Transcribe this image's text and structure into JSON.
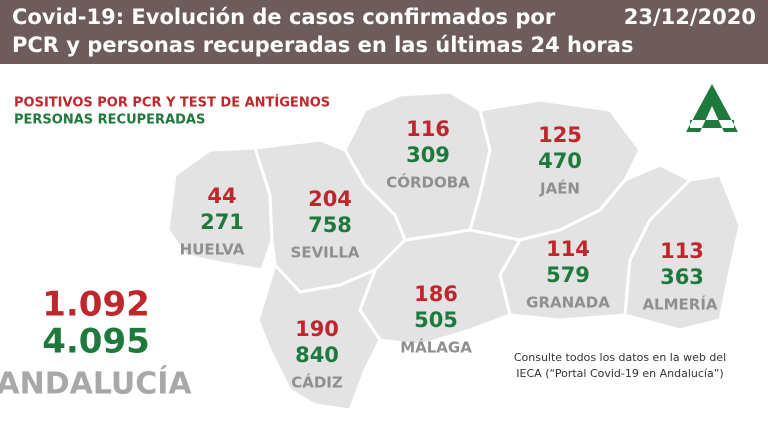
{
  "header": {
    "title_lines": [
      "Covid-19: Evolución de casos confirmados por",
      "PCR y personas recuperadas en las últimas 24 horas"
    ],
    "date": "23/12/2020"
  },
  "legend": {
    "positives": "POSITIVOS POR PCR Y TEST DE ANTÍGENOS",
    "recovered": "PERSONAS RECUPERADAS"
  },
  "provinces": [
    {
      "name": "HUELVA",
      "positives": "44",
      "recovered": "271"
    },
    {
      "name": "SEVILLA",
      "positives": "204",
      "recovered": "758"
    },
    {
      "name": "CÓRDOBA",
      "positives": "116",
      "recovered": "309"
    },
    {
      "name": "JAÉN",
      "positives": "125",
      "recovered": "470"
    },
    {
      "name": "GRANADA",
      "positives": "114",
      "recovered": "579"
    },
    {
      "name": "ALMERÍA",
      "positives": "113",
      "recovered": "363"
    },
    {
      "name": "MÁLAGA",
      "positives": "186",
      "recovered": "505"
    },
    {
      "name": "CÁDIZ",
      "positives": "190",
      "recovered": "840"
    }
  ],
  "total": {
    "name": "ANDALUCÍA",
    "positives": "1.092",
    "recovered": "4.095"
  },
  "note_lines": [
    "Consulte todos los datos en la web del",
    "IECA (“Portal Covid-19 en Andalucía”)"
  ]
}
